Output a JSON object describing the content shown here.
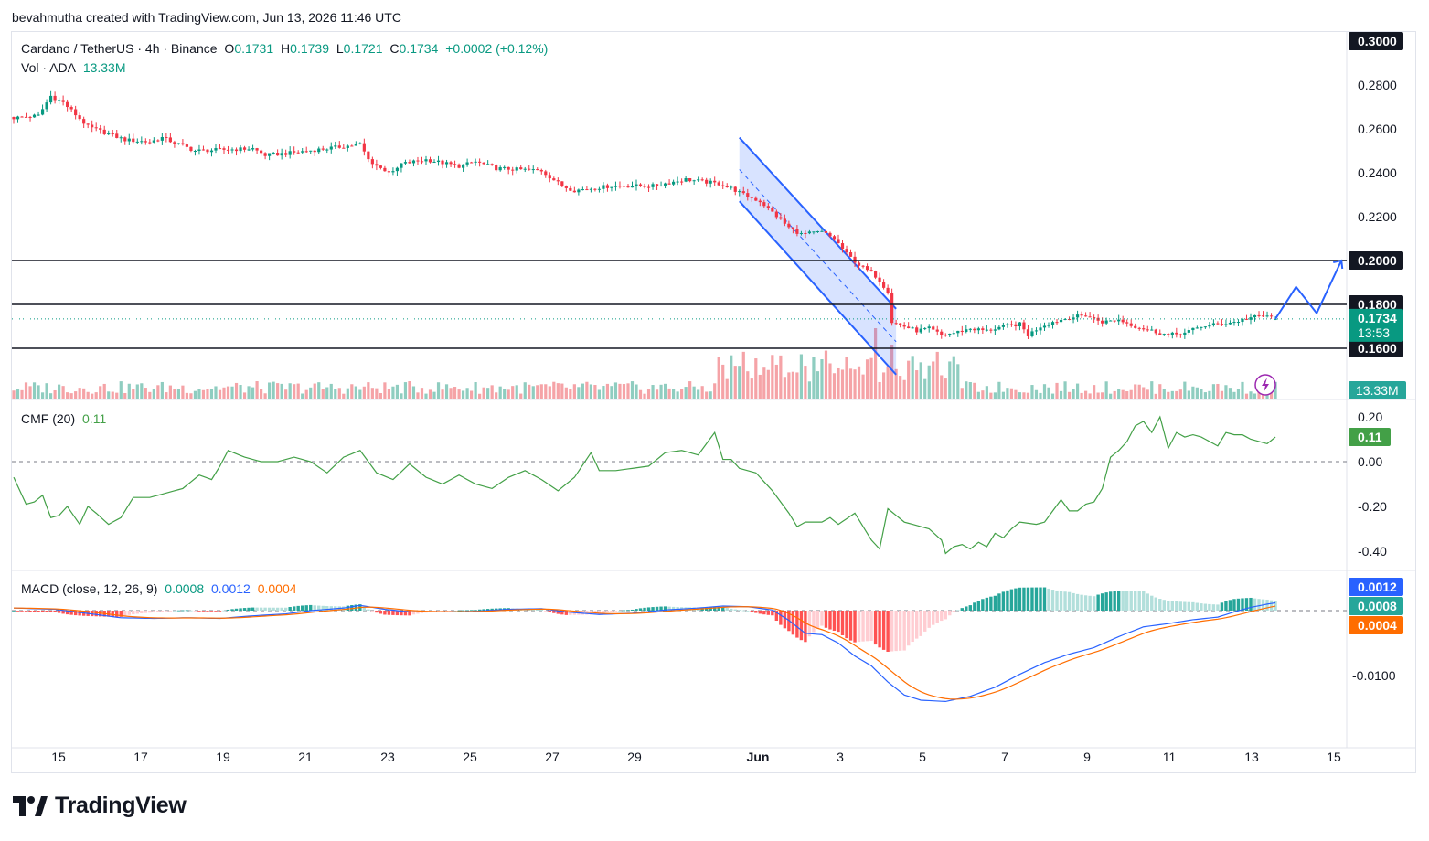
{
  "header": {
    "attribution": "bevahmutha created with TradingView.com, Jun 13, 2026 11:46 UTC"
  },
  "legend": {
    "symbol": "Cardano / TetherUS · 4h · Binance",
    "o_label": "O",
    "o_value": "0.1731",
    "h_label": "H",
    "h_value": "0.1739",
    "l_label": "L",
    "l_value": "0.1721",
    "c_label": "C",
    "c_value": "0.1734",
    "change": "+0.0002 (+0.12%)",
    "vol_label": "Vol · ADA",
    "vol_value": "13.33M",
    "cmf_label": "CMF (20)",
    "cmf_value": "0.11",
    "macd_label": "MACD (close, 12, 26, 9)",
    "macd_v1": "0.0008",
    "macd_v2": "0.0012",
    "macd_v3": "0.0004"
  },
  "colors": {
    "up": "#089981",
    "down": "#f23645",
    "vol_up": "#8fcdc0",
    "vol_down": "#f5a3a7",
    "cmf_line": "#43a047",
    "macd_line": "#2962ff",
    "signal_line": "#ff6d00",
    "hist_up_strong": "#26a69a",
    "hist_up_weak": "#b2dfdb",
    "hist_down_strong": "#ff5252",
    "hist_down_weak": "#ffcdd2",
    "channel": "#2962ff",
    "drawing": "#2962ff",
    "hline": "#131722"
  },
  "price_axis": {
    "ticks": [
      "0.3000",
      "0.2800",
      "0.2600",
      "0.2400",
      "0.2200",
      "0.2000",
      "0.1800",
      "0.1600"
    ],
    "labels_boxed": [
      {
        "text": "0.3000",
        "value": 0.3,
        "bg": "#131722",
        "fg": "#ffffff"
      },
      {
        "text": "0.2000",
        "value": 0.2,
        "bg": "#131722",
        "fg": "#ffffff"
      },
      {
        "text": "0.1800",
        "value": 0.18,
        "bg": "#131722",
        "fg": "#ffffff"
      },
      {
        "text": "0.1600",
        "value": 0.16,
        "bg": "#131722",
        "fg": "#ffffff"
      }
    ],
    "last_price": "0.1734",
    "countdown": "13:53",
    "volume_label": "13.33M"
  },
  "cmf_axis": {
    "ticks": [
      "0.20",
      "0.00",
      "-0.20",
      "-0.40"
    ],
    "current": "0.11"
  },
  "macd_axis": {
    "ticks": [
      "-0.0100"
    ],
    "badge_macd": "0.0012",
    "badge_hist": "0.0008",
    "badge_signal": "0.0004"
  },
  "time_axis": {
    "labels": [
      "15",
      "17",
      "19",
      "21",
      "23",
      "25",
      "27",
      "29",
      "Jun",
      "3",
      "5",
      "7",
      "9",
      "11",
      "13",
      "15"
    ]
  },
  "chart_data": {
    "type": "candlestick",
    "symbol": "ADA/USDT",
    "interval": "4h",
    "y_range": [
      0.15,
      0.305
    ],
    "horizontal_levels": [
      0.2,
      0.18,
      0.16
    ],
    "anchors_close": [
      [
        0,
        0.265
      ],
      [
        6,
        0.266
      ],
      [
        9,
        0.275
      ],
      [
        12,
        0.272
      ],
      [
        18,
        0.261
      ],
      [
        27,
        0.255
      ],
      [
        33,
        0.254
      ],
      [
        36,
        0.256
      ],
      [
        44,
        0.25
      ],
      [
        58,
        0.251
      ],
      [
        61,
        0.248
      ],
      [
        67,
        0.249
      ],
      [
        80,
        0.252
      ],
      [
        84,
        0.253
      ],
      [
        86,
        0.246
      ],
      [
        89,
        0.242
      ],
      [
        92,
        0.24
      ],
      [
        94,
        0.244
      ],
      [
        100,
        0.246
      ],
      [
        108,
        0.243
      ],
      [
        112,
        0.245
      ],
      [
        117,
        0.242
      ],
      [
        128,
        0.241
      ],
      [
        133,
        0.234
      ],
      [
        136,
        0.232
      ],
      [
        145,
        0.234
      ],
      [
        155,
        0.234
      ],
      [
        163,
        0.237
      ],
      [
        171,
        0.235
      ],
      [
        174,
        0.233
      ],
      [
        177,
        0.23
      ],
      [
        181,
        0.227
      ],
      [
        184,
        0.222
      ],
      [
        188,
        0.215
      ],
      [
        191,
        0.212
      ],
      [
        196,
        0.213
      ],
      [
        199,
        0.21
      ],
      [
        202,
        0.203
      ],
      [
        205,
        0.198
      ],
      [
        209,
        0.193
      ],
      [
        212,
        0.186
      ],
      [
        213,
        0.172
      ],
      [
        216,
        0.17
      ],
      [
        219,
        0.168
      ],
      [
        222,
        0.169
      ],
      [
        225,
        0.166
      ],
      [
        228,
        0.167
      ],
      [
        232,
        0.169
      ],
      [
        236,
        0.168
      ],
      [
        240,
        0.17
      ],
      [
        244,
        0.171
      ],
      [
        246,
        0.166
      ],
      [
        249,
        0.17
      ],
      [
        252,
        0.172
      ],
      [
        256,
        0.174
      ],
      [
        260,
        0.175
      ],
      [
        264,
        0.172
      ],
      [
        268,
        0.173
      ],
      [
        272,
        0.17
      ],
      [
        276,
        0.168
      ],
      [
        280,
        0.166
      ],
      [
        284,
        0.167
      ],
      [
        288,
        0.17
      ],
      [
        292,
        0.171
      ],
      [
        296,
        0.172
      ],
      [
        300,
        0.174
      ],
      [
        304,
        0.175
      ],
      [
        306,
        0.1734
      ]
    ],
    "cmf_anchors": [
      [
        0,
        -0.07
      ],
      [
        3,
        -0.19
      ],
      [
        5,
        -0.18
      ],
      [
        7,
        -0.15
      ],
      [
        9,
        -0.25
      ],
      [
        11,
        -0.24
      ],
      [
        13,
        -0.2
      ],
      [
        16,
        -0.28
      ],
      [
        18,
        -0.2
      ],
      [
        20,
        -0.23
      ],
      [
        23,
        -0.28
      ],
      [
        26,
        -0.25
      ],
      [
        29,
        -0.16
      ],
      [
        33,
        -0.16
      ],
      [
        37,
        -0.14
      ],
      [
        41,
        -0.12
      ],
      [
        45,
        -0.06
      ],
      [
        48,
        -0.08
      ],
      [
        50,
        -0.02
      ],
      [
        52,
        0.05
      ],
      [
        56,
        0.02
      ],
      [
        60,
        0.0
      ],
      [
        64,
        0.0
      ],
      [
        68,
        0.02
      ],
      [
        72,
        0.0
      ],
      [
        76,
        -0.05
      ],
      [
        80,
        0.02
      ],
      [
        84,
        0.05
      ],
      [
        88,
        -0.05
      ],
      [
        92,
        -0.08
      ],
      [
        96,
        -0.01
      ],
      [
        100,
        -0.07
      ],
      [
        104,
        -0.1
      ],
      [
        108,
        -0.06
      ],
      [
        112,
        -0.1
      ],
      [
        116,
        -0.12
      ],
      [
        120,
        -0.07
      ],
      [
        124,
        -0.04
      ],
      [
        128,
        -0.08
      ],
      [
        132,
        -0.13
      ],
      [
        136,
        -0.07
      ],
      [
        140,
        0.04
      ],
      [
        142,
        -0.04
      ],
      [
        146,
        -0.04
      ],
      [
        150,
        -0.03
      ],
      [
        154,
        -0.02
      ],
      [
        158,
        0.04
      ],
      [
        162,
        0.05
      ],
      [
        166,
        0.03
      ],
      [
        170,
        0.13
      ],
      [
        172,
        0.01
      ],
      [
        174,
        0.01
      ],
      [
        176,
        -0.03
      ],
      [
        180,
        -0.05
      ],
      [
        184,
        -0.13
      ],
      [
        188,
        -0.23
      ],
      [
        190,
        -0.29
      ],
      [
        192,
        -0.27
      ],
      [
        196,
        -0.27
      ],
      [
        198,
        -0.25
      ],
      [
        200,
        -0.28
      ],
      [
        204,
        -0.23
      ],
      [
        208,
        -0.35
      ],
      [
        210,
        -0.39
      ],
      [
        212,
        -0.21
      ],
      [
        216,
        -0.27
      ],
      [
        220,
        -0.29
      ],
      [
        222,
        -0.3
      ],
      [
        225,
        -0.35
      ],
      [
        226,
        -0.41
      ],
      [
        228,
        -0.38
      ],
      [
        230,
        -0.37
      ],
      [
        232,
        -0.39
      ],
      [
        234,
        -0.36
      ],
      [
        236,
        -0.38
      ],
      [
        238,
        -0.32
      ],
      [
        240,
        -0.34
      ],
      [
        242,
        -0.3
      ],
      [
        244,
        -0.27
      ],
      [
        248,
        -0.28
      ],
      [
        250,
        -0.27
      ],
      [
        252,
        -0.22
      ],
      [
        254,
        -0.17
      ],
      [
        256,
        -0.22
      ],
      [
        258,
        -0.22
      ],
      [
        260,
        -0.19
      ],
      [
        262,
        -0.18
      ],
      [
        264,
        -0.12
      ],
      [
        266,
        0.02
      ],
      [
        268,
        0.05
      ],
      [
        270,
        0.09
      ],
      [
        272,
        0.16
      ],
      [
        274,
        0.18
      ],
      [
        276,
        0.13
      ],
      [
        278,
        0.2
      ],
      [
        280,
        0.06
      ],
      [
        282,
        0.13
      ],
      [
        284,
        0.11
      ],
      [
        286,
        0.12
      ],
      [
        288,
        0.11
      ],
      [
        292,
        0.07
      ],
      [
        294,
        0.13
      ],
      [
        296,
        0.12
      ],
      [
        298,
        0.12
      ],
      [
        300,
        0.1
      ],
      [
        304,
        0.08
      ],
      [
        306,
        0.11
      ]
    ],
    "macd_anchors": [
      [
        0,
        0.0004
      ],
      [
        10,
        0.0002
      ],
      [
        20,
        -0.0006
      ],
      [
        26,
        -0.0011
      ],
      [
        34,
        -0.0012
      ],
      [
        42,
        -0.0011
      ],
      [
        50,
        -0.0012
      ],
      [
        58,
        -0.0008
      ],
      [
        66,
        -0.0005
      ],
      [
        72,
        0.0
      ],
      [
        80,
        0.0004
      ],
      [
        84,
        0.0008
      ],
      [
        90,
        0.0002
      ],
      [
        96,
        -0.0002
      ],
      [
        104,
        -0.0002
      ],
      [
        112,
        -0.0001
      ],
      [
        120,
        0.0002
      ],
      [
        128,
        0.0003
      ],
      [
        134,
        -0.0002
      ],
      [
        142,
        -0.0006
      ],
      [
        150,
        -0.0004
      ],
      [
        158,
        0.0001
      ],
      [
        166,
        0.0004
      ],
      [
        172,
        0.0007
      ],
      [
        178,
        0.0006
      ],
      [
        184,
        0.0001
      ],
      [
        188,
        -0.0015
      ],
      [
        192,
        -0.0035
      ],
      [
        196,
        -0.0037
      ],
      [
        200,
        -0.005
      ],
      [
        204,
        -0.007
      ],
      [
        208,
        -0.0085
      ],
      [
        212,
        -0.011
      ],
      [
        216,
        -0.013
      ],
      [
        220,
        -0.0138
      ],
      [
        226,
        -0.014
      ],
      [
        232,
        -0.0132
      ],
      [
        238,
        -0.0118
      ],
      [
        244,
        -0.0098
      ],
      [
        250,
        -0.008
      ],
      [
        256,
        -0.0067
      ],
      [
        262,
        -0.0057
      ],
      [
        268,
        -0.004
      ],
      [
        274,
        -0.0025
      ],
      [
        280,
        -0.002
      ],
      [
        286,
        -0.0014
      ],
      [
        292,
        -0.001
      ],
      [
        296,
        -0.0002
      ],
      [
        300,
        0.0005
      ],
      [
        304,
        0.001
      ],
      [
        306,
        0.0012
      ]
    ],
    "annotations": {
      "descending_channel": {
        "upper_from": [
          176,
          0.256
        ],
        "upper_to": [
          214,
          0.178
        ],
        "lower_from": [
          176,
          0.227
        ],
        "lower_to": [
          214,
          0.148
        ]
      },
      "projection_path": [
        [
          306,
          0.1734
        ],
        [
          311,
          0.188
        ],
        [
          316,
          0.176
        ],
        [
          322,
          0.2
        ]
      ]
    }
  }
}
